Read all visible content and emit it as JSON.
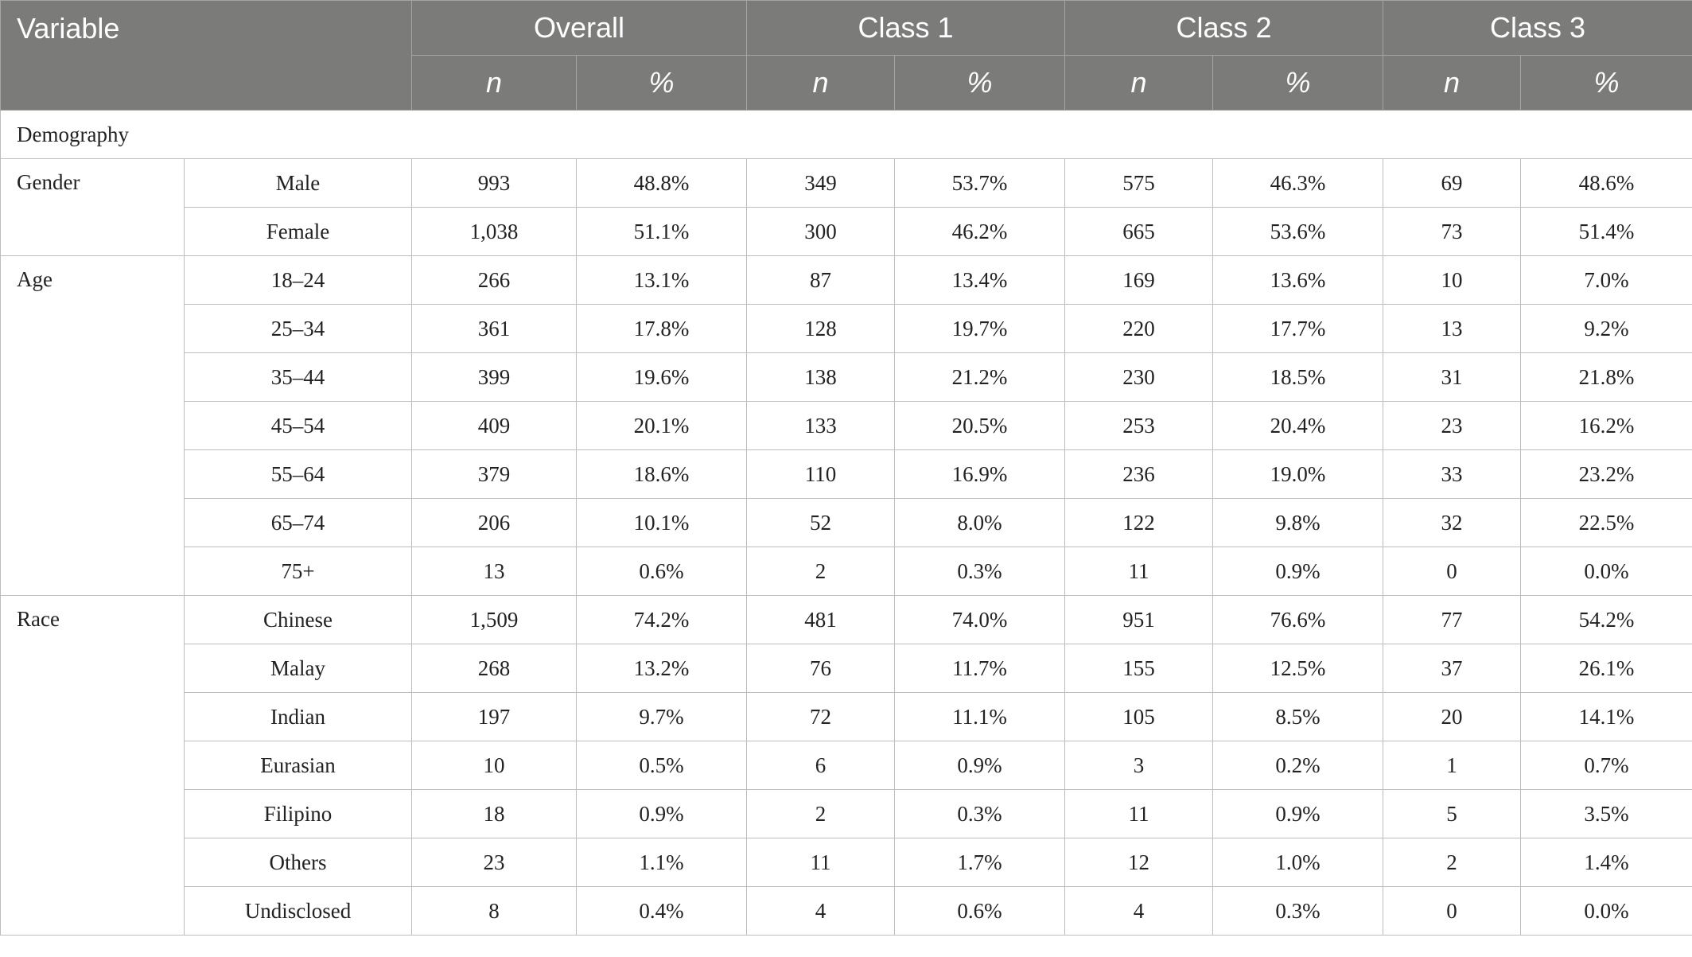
{
  "header": {
    "variable": "Variable",
    "groups": [
      "Overall",
      "Class 1",
      "Class 2",
      "Class 3"
    ],
    "sub": [
      "n",
      "%"
    ]
  },
  "section_title": "Demography",
  "gender": {
    "label": "Gender",
    "rows": [
      {
        "label": "Male",
        "vals": [
          "993",
          "48.8%",
          "349",
          "53.7%",
          "575",
          "46.3%",
          "69",
          "48.6%"
        ]
      },
      {
        "label": "Female",
        "vals": [
          "1,038",
          "51.1%",
          "300",
          "46.2%",
          "665",
          "53.6%",
          "73",
          "51.4%"
        ]
      }
    ]
  },
  "age": {
    "label": "Age",
    "rows": [
      {
        "label": "18–24",
        "vals": [
          "266",
          "13.1%",
          "87",
          "13.4%",
          "169",
          "13.6%",
          "10",
          "7.0%"
        ]
      },
      {
        "label": "25–34",
        "vals": [
          "361",
          "17.8%",
          "128",
          "19.7%",
          "220",
          "17.7%",
          "13",
          "9.2%"
        ]
      },
      {
        "label": "35–44",
        "vals": [
          "399",
          "19.6%",
          "138",
          "21.2%",
          "230",
          "18.5%",
          "31",
          "21.8%"
        ]
      },
      {
        "label": "45–54",
        "vals": [
          "409",
          "20.1%",
          "133",
          "20.5%",
          "253",
          "20.4%",
          "23",
          "16.2%"
        ]
      },
      {
        "label": "55–64",
        "vals": [
          "379",
          "18.6%",
          "110",
          "16.9%",
          "236",
          "19.0%",
          "33",
          "23.2%"
        ]
      },
      {
        "label": "65–74",
        "vals": [
          "206",
          "10.1%",
          "52",
          "8.0%",
          "122",
          "9.8%",
          "32",
          "22.5%"
        ]
      },
      {
        "label": "75+",
        "vals": [
          "13",
          "0.6%",
          "2",
          "0.3%",
          "11",
          "0.9%",
          "0",
          "0.0%"
        ]
      }
    ]
  },
  "race": {
    "label": "Race",
    "rows": [
      {
        "label": "Chinese",
        "vals": [
          "1,509",
          "74.2%",
          "481",
          "74.0%",
          "951",
          "76.6%",
          "77",
          "54.2%"
        ]
      },
      {
        "label": "Malay",
        "vals": [
          "268",
          "13.2%",
          "76",
          "11.7%",
          "155",
          "12.5%",
          "37",
          "26.1%"
        ]
      },
      {
        "label": "Indian",
        "vals": [
          "197",
          "9.7%",
          "72",
          "11.1%",
          "105",
          "8.5%",
          "20",
          "14.1%"
        ]
      },
      {
        "label": "Eurasian",
        "vals": [
          "10",
          "0.5%",
          "6",
          "0.9%",
          "3",
          "0.2%",
          "1",
          "0.7%"
        ]
      },
      {
        "label": "Filipino",
        "vals": [
          "18",
          "0.9%",
          "2",
          "0.3%",
          "11",
          "0.9%",
          "5",
          "3.5%"
        ]
      },
      {
        "label": "Others",
        "vals": [
          "23",
          "1.1%",
          "11",
          "1.7%",
          "12",
          "1.0%",
          "2",
          "1.4%"
        ]
      },
      {
        "label": "Undisclosed",
        "vals": [
          "8",
          "0.4%",
          "4",
          "0.6%",
          "4",
          "0.3%",
          "0",
          "0.0%"
        ]
      }
    ]
  }
}
